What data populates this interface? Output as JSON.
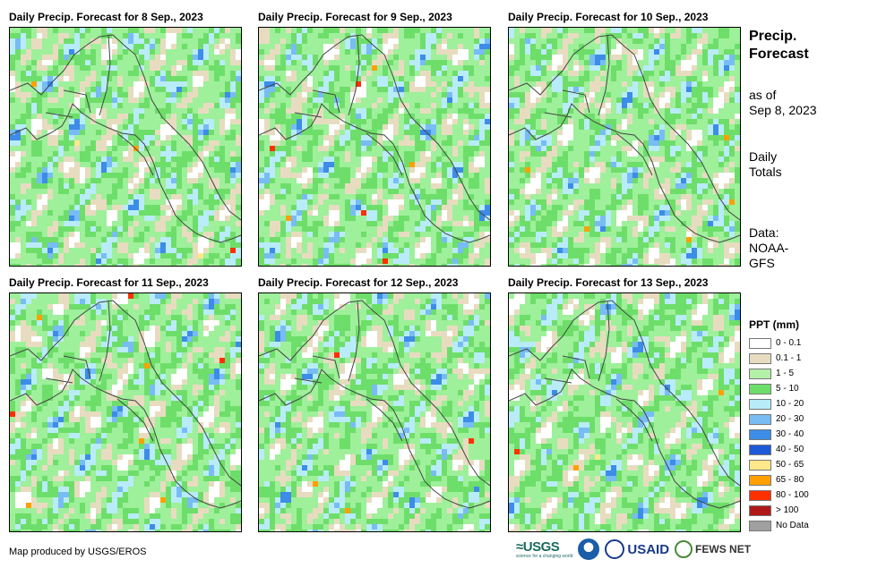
{
  "panels": [
    {
      "title": "Daily Precip. Forecast for 8 Sep., 2023",
      "seed": 11
    },
    {
      "title": "Daily Precip. Forecast for 9 Sep., 2023",
      "seed": 23
    },
    {
      "title": "Daily Precip. Forecast for 10 Sep., 2023",
      "seed": 37
    },
    {
      "title": "Daily Precip. Forecast for 11 Sep., 2023",
      "seed": 41
    },
    {
      "title": "Daily Precip. Forecast for 12 Sep., 2023",
      "seed": 53
    },
    {
      "title": "Daily Precip. Forecast for 13 Sep., 2023",
      "seed": 67
    }
  ],
  "side": {
    "title_line1": "Precip.",
    "title_line2": "Forecast",
    "asof_line1": "as of",
    "asof_line2": "Sep 8, 2023",
    "totals_line1": "Daily",
    "totals_line2": "Totals",
    "data_line1": "Data:",
    "data_line2": "NOAA-",
    "data_line3": "GFS"
  },
  "legend": {
    "title": "PPT (mm)",
    "items": [
      {
        "label": "0 - 0.1",
        "color": "#ffffff"
      },
      {
        "label": "0.1 - 1",
        "color": "#e8dcc0"
      },
      {
        "label": "1 - 5",
        "color": "#b4f0a8"
      },
      {
        "label": "5 - 10",
        "color": "#6ede6a"
      },
      {
        "label": "10 - 20",
        "color": "#b8ecf8"
      },
      {
        "label": "20 - 30",
        "color": "#78bcf4"
      },
      {
        "label": "30 - 40",
        "color": "#3c8ce8"
      },
      {
        "label": "40 - 50",
        "color": "#1e5ad8"
      },
      {
        "label": "50 - 65",
        "color": "#ffe88c"
      },
      {
        "label": "65 - 80",
        "color": "#ffa000"
      },
      {
        "label": "80 - 100",
        "color": "#ff3000"
      },
      {
        "label": "> 100",
        "color": "#b01818"
      },
      {
        "label": "No Data",
        "color": "#a0a0a0"
      }
    ]
  },
  "credit": "Map produced by USGS/EROS",
  "logos": {
    "usgs": "≈USGS",
    "usgs_sub": "science for a changing world",
    "usaid": "USAID",
    "fews": "FEWS NET"
  }
}
